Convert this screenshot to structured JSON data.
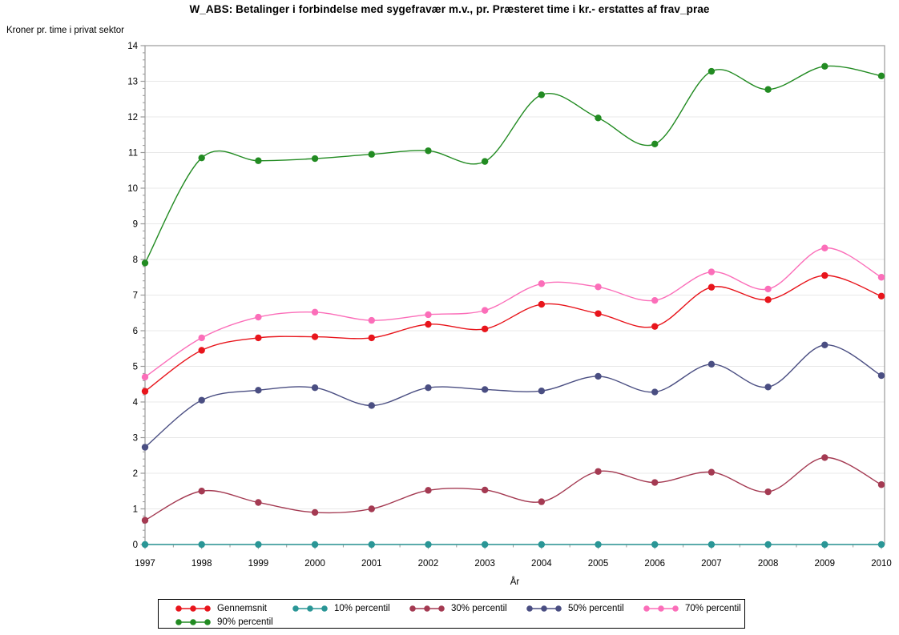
{
  "chart_data": {
    "type": "line",
    "title": "W_ABS: Betalinger i forbindelse med sygefravær m.v., pr. Præsteret time i kr.- erstattes af frav_prae",
    "ylabel": "Kroner pr. time i privat sektor",
    "xlabel": "År",
    "categories": [
      "1997",
      "1998",
      "1999",
      "2000",
      "2001",
      "2002",
      "2003",
      "2004",
      "2005",
      "2006",
      "2007",
      "2008",
      "2009",
      "2010"
    ],
    "ylim": [
      0,
      14
    ],
    "ytick_step": 1,
    "y_minor_per_unit": 5,
    "grid": true,
    "interpolation": "smooth-spline",
    "legend_position": "bottom",
    "marker_style": "filled-circle",
    "series": [
      {
        "name": "Gennemsnit",
        "color": "#e8151c",
        "values": [
          4.3,
          5.45,
          5.8,
          5.83,
          5.8,
          6.18,
          6.05,
          6.74,
          6.48,
          6.12,
          7.22,
          6.87,
          7.55,
          6.97
        ]
      },
      {
        "name": "10% percentil",
        "color": "#2a9696",
        "values": [
          0,
          0,
          0,
          0,
          0,
          0,
          0,
          0,
          0,
          0,
          0,
          0,
          0,
          0
        ]
      },
      {
        "name": "30% percentil",
        "color": "#a43a52",
        "values": [
          0.68,
          1.5,
          1.18,
          0.9,
          1.0,
          1.52,
          1.53,
          1.2,
          2.05,
          1.74,
          2.03,
          1.48,
          2.44,
          1.68
        ]
      },
      {
        "name": "50% percentil",
        "color": "#4a4e82",
        "values": [
          2.73,
          4.05,
          4.33,
          4.4,
          3.9,
          4.4,
          4.35,
          4.31,
          4.72,
          4.28,
          5.06,
          4.42,
          5.6,
          4.74
        ]
      },
      {
        "name": "70% percentil",
        "color": "#fb6eb9",
        "values": [
          4.7,
          5.8,
          6.38,
          6.52,
          6.29,
          6.45,
          6.57,
          7.32,
          7.23,
          6.85,
          7.65,
          7.17,
          8.32,
          7.5
        ]
      },
      {
        "name": "90% percentil",
        "color": "#228b22",
        "values": [
          7.9,
          10.85,
          10.77,
          10.83,
          10.95,
          11.05,
          10.75,
          12.62,
          11.97,
          11.24,
          13.28,
          12.77,
          13.42,
          13.15
        ]
      }
    ]
  },
  "colors": {
    "background": "#ffffff",
    "frame": "#999999",
    "grid": "#e8e8e8",
    "text": "#000000"
  }
}
